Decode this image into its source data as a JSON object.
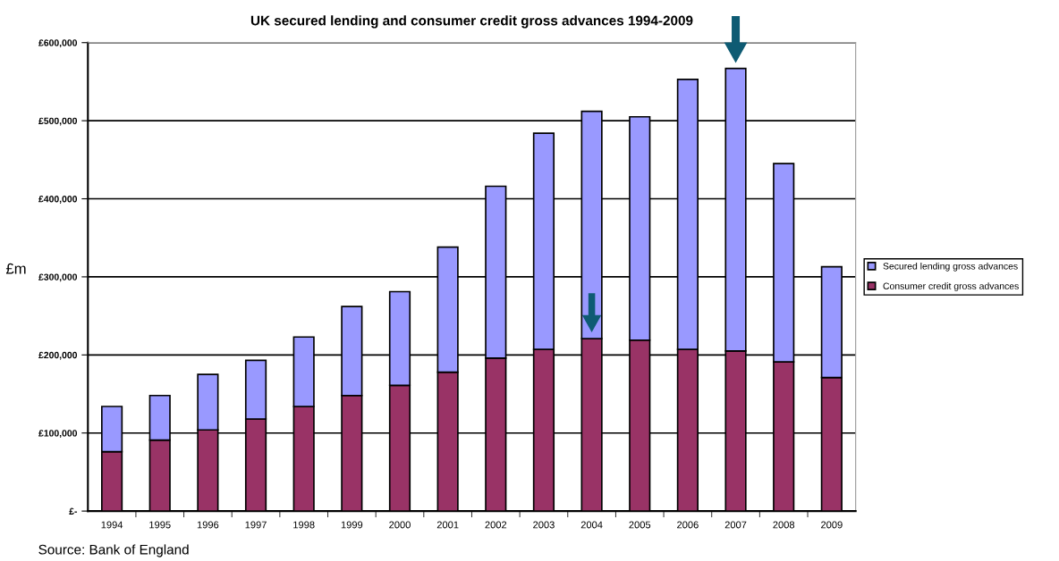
{
  "chart_data": {
    "type": "bar",
    "title": "UK secured lending and consumer credit gross advances 1994-2009",
    "ylabel": "£m",
    "categories": [
      "1994",
      "1995",
      "1996",
      "1997",
      "1998",
      "1999",
      "2000",
      "2001",
      "2002",
      "2003",
      "2004",
      "2005",
      "2006",
      "2007",
      "2008",
      "2009"
    ],
    "stacked": true,
    "series": [
      {
        "name": "Consumer credit gross advances",
        "color": "#993366",
        "values": [
          76000,
          91000,
          104000,
          118000,
          134000,
          148000,
          161000,
          178000,
          196000,
          207000,
          221000,
          219000,
          207000,
          205000,
          191000,
          171000
        ]
      },
      {
        "name": "Secured lending gross advances",
        "color": "#9999ff",
        "values": [
          58000,
          57000,
          71000,
          75000,
          89000,
          114000,
          120000,
          160000,
          220000,
          277000,
          291000,
          286000,
          346000,
          362000,
          254000,
          142000
        ]
      }
    ],
    "ylim": [
      0,
      600000
    ],
    "yticks": [
      {
        "value": 0,
        "label": "£-"
      },
      {
        "value": 100000,
        "label": "£100,000"
      },
      {
        "value": 200000,
        "label": "£200,000"
      },
      {
        "value": 300000,
        "label": "£300,000"
      },
      {
        "value": 400000,
        "label": "£400,000"
      },
      {
        "value": 500000,
        "label": "£500,000"
      },
      {
        "value": 600000,
        "label": "£600,000"
      }
    ],
    "grid": "y",
    "legend": "right",
    "annotations": [
      "Source: Bank of England"
    ]
  }
}
